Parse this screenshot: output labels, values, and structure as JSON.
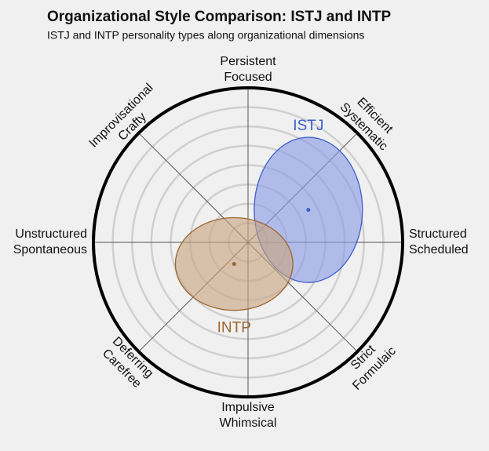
{
  "chart_data": {
    "type": "ellipse",
    "title": "Organizational Style Comparison: ISTJ and INTP",
    "subtitle": "ISTJ and INTP personality types along organizational dimensions",
    "xlim": [
      -100,
      100
    ],
    "ylim": [
      -100,
      100
    ],
    "rings": [
      12.5,
      25,
      37.5,
      50,
      62.5,
      75,
      87.5
    ],
    "dimensions": [
      {
        "lines": [
          "Persistent",
          "Focused"
        ]
      },
      {
        "lines": [
          "Efficient",
          "Systematic"
        ]
      },
      {
        "lines": [
          "Structured",
          "Scheduled"
        ]
      },
      {
        "lines": [
          "Strict",
          "Formulaic"
        ]
      },
      {
        "lines": [
          "Impulsive",
          "Whimsical"
        ]
      },
      {
        "lines": [
          "Deferring",
          "Carefree"
        ]
      },
      {
        "lines": [
          "Unstructured",
          "Spontaneous"
        ]
      },
      {
        "lines": [
          "Improvisational",
          "Crafty"
        ]
      }
    ],
    "series": [
      {
        "name": "ISTJ",
        "color": "#3a5fcd",
        "fill": "#8a9be6",
        "x": 39,
        "y": 21,
        "rx": 35,
        "ry": 47
      },
      {
        "name": "INTP",
        "color": "#9c6630",
        "fill": "#c9a47f",
        "x": -9,
        "y": -14,
        "rx": 38,
        "ry": 30
      }
    ]
  }
}
